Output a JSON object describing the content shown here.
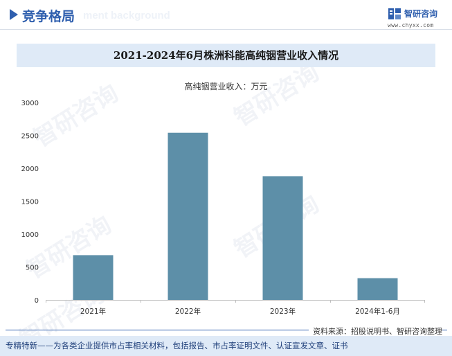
{
  "header": {
    "title": "竞争格局",
    "ghost_text": "ment background"
  },
  "logo": {
    "name": "智研咨询",
    "url": "www.chyxx.com",
    "watermark_text": "智研咨询"
  },
  "chart_data": {
    "type": "bar",
    "title": "2021-2024年6月株洲科能高纯铟营业收入情况",
    "series_label": "高纯铟营业收入：万元",
    "categories": [
      "2021年",
      "2022年",
      "2023年",
      "2024年1-6月"
    ],
    "values": [
      680,
      2540,
      1880,
      330
    ],
    "ylim": [
      0,
      3000
    ],
    "yticks": [
      0,
      500,
      1000,
      1500,
      2000,
      2500,
      3000
    ],
    "bar_color": "#5d8fa8",
    "grid": false,
    "legend": "none"
  },
  "footer": {
    "source": "资料来源：招股说明书、智研咨询整理",
    "tagline": "专精特新——为各类企业提供市占率相关材料，包括报告、市占率证明文件、认证宣发文章、证书"
  },
  "colors": {
    "brand": "#2f5fae",
    "band": "#dfeaf7"
  }
}
